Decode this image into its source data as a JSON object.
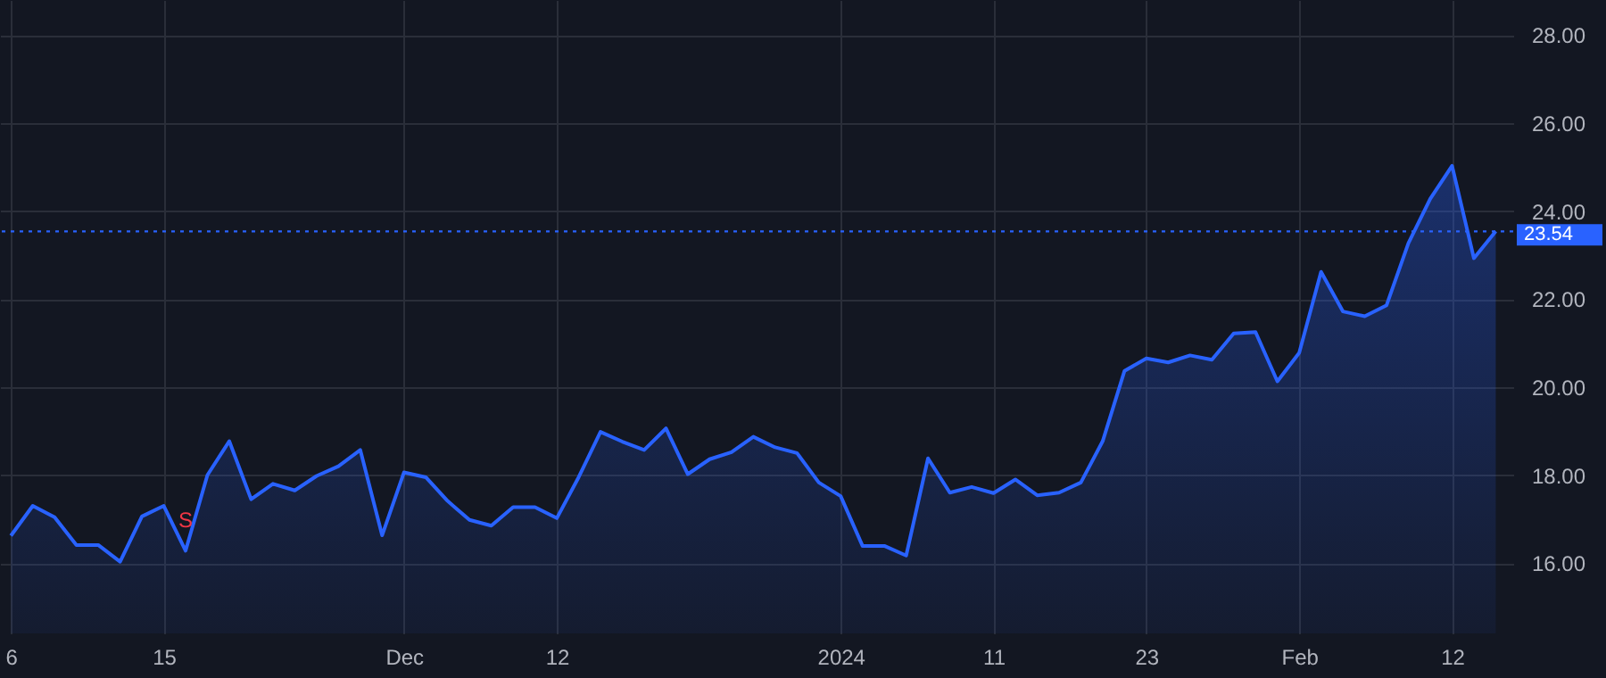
{
  "chart_data": {
    "type": "area",
    "categories": [
      "6",
      null,
      null,
      null,
      null,
      null,
      null,
      "15",
      null,
      null,
      null,
      null,
      null,
      null,
      null,
      null,
      null,
      null,
      "Dec",
      null,
      null,
      null,
      null,
      null,
      null,
      "12",
      null,
      null,
      null,
      null,
      null,
      null,
      null,
      null,
      null,
      null,
      null,
      null,
      "2024",
      null,
      null,
      null,
      null,
      null,
      null,
      "11",
      null,
      null,
      null,
      null,
      null,
      null,
      "23",
      null,
      null,
      null,
      null,
      null,
      null,
      "Feb",
      null,
      null,
      null,
      null,
      null,
      null,
      "12",
      null,
      null
    ],
    "series": [
      {
        "color": "#2962ff",
        "values": [
          16.62,
          17.3,
          17.04,
          16.41,
          16.41,
          16.03,
          17.06,
          17.3,
          16.28,
          18.0,
          18.77,
          17.45,
          17.8,
          17.65,
          17.98,
          18.2,
          18.57,
          16.63,
          18.06,
          17.95,
          17.41,
          16.98,
          16.85,
          17.27,
          17.27,
          17.02,
          17.95,
          18.98,
          18.76,
          18.57,
          19.06,
          18.02,
          18.36,
          18.52,
          18.87,
          18.63,
          18.5,
          17.83,
          17.52,
          16.39,
          16.39,
          16.17,
          18.38,
          17.6,
          17.73,
          17.59,
          17.9,
          17.54,
          17.6,
          17.83,
          18.77,
          20.37,
          20.65,
          20.56,
          20.72,
          20.62,
          21.22,
          21.25,
          20.13,
          20.78,
          22.62,
          21.72,
          21.61,
          21.86,
          23.27,
          24.28,
          25.03,
          22.93,
          23.54
        ]
      }
    ],
    "ylim": [
      14.4,
      28.8
    ],
    "yticks": [
      {
        "value": 16,
        "label": "16.00"
      },
      {
        "value": 18,
        "label": "18.00"
      },
      {
        "value": 20,
        "label": "20.00"
      },
      {
        "value": 22,
        "label": "22.00"
      },
      {
        "value": 24,
        "label": "24.00"
      },
      {
        "value": 26,
        "label": "26.00"
      },
      {
        "value": 28,
        "label": "28.00"
      }
    ],
    "ref_lines": [
      {
        "axis": "y",
        "value": 23.54,
        "label": "23.54",
        "color": "#2962ff",
        "line_style": "dotted"
      }
    ],
    "annotations": [
      {
        "text": "S",
        "y": 16.28
      }
    ],
    "grid": true
  }
}
